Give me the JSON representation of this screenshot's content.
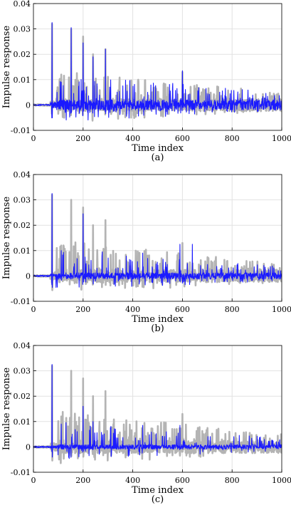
{
  "chart_data": [
    {
      "type": "line",
      "caption": "(a)",
      "xlabel": "Time index",
      "ylabel": "Impulse response",
      "xlim": [
        0,
        1000
      ],
      "ylim": [
        -0.01,
        0.04
      ],
      "xticks": [
        0,
        200,
        400,
        600,
        800,
        1000
      ],
      "yticks": [
        -0.01,
        0,
        0.01,
        0.02,
        0.03,
        0.04
      ],
      "xtick_labels": [
        "0",
        "200",
        "400",
        "600",
        "800",
        "1000"
      ],
      "ytick_labels": [
        "-0.01",
        "0",
        "0.01",
        "0.02",
        "0.03",
        "0.04"
      ],
      "grid": true,
      "series": [
        {
          "color": "#b4b4b4",
          "role": "reference",
          "peaks": [
            [
              75,
              0.032
            ],
            [
              112,
              0.012
            ],
            [
              152,
              0.03
            ],
            [
              200,
              0.027
            ],
            [
              240,
              0.02
            ],
            [
              290,
              0.022
            ],
            [
              600,
              0.013
            ]
          ]
        },
        {
          "color": "#1a1aff",
          "role": "estimate",
          "peaks": [
            [
              75,
              0.0325
            ],
            [
              112,
              0.009
            ],
            [
              152,
              0.0305
            ],
            [
              200,
              0.0245
            ],
            [
              240,
              0.019
            ],
            [
              290,
              0.022
            ],
            [
              600,
              0.0135
            ]
          ]
        }
      ]
    },
    {
      "type": "line",
      "caption": "(b)",
      "xlabel": "Time index",
      "ylabel": "Impulse response",
      "xlim": [
        0,
        1000
      ],
      "ylim": [
        -0.01,
        0.04
      ],
      "xticks": [
        0,
        200,
        400,
        600,
        800,
        1000
      ],
      "yticks": [
        -0.01,
        0,
        0.01,
        0.02,
        0.03,
        0.04
      ],
      "xtick_labels": [
        "0",
        "200",
        "400",
        "600",
        "800",
        "1000"
      ],
      "ytick_labels": [
        "-0.01",
        "0",
        "0.01",
        "0.02",
        "0.03",
        "0.04"
      ],
      "grid": true,
      "series": [
        {
          "color": "#b4b4b4",
          "role": "reference",
          "peaks": [
            [
              75,
              0.032
            ],
            [
              112,
              0.012
            ],
            [
              152,
              0.03
            ],
            [
              200,
              0.027
            ],
            [
              240,
              0.02
            ],
            [
              290,
              0.022
            ],
            [
              600,
              0.013
            ]
          ]
        },
        {
          "color": "#1a1aff",
          "role": "estimate",
          "peaks": [
            [
              75,
              0.0325
            ],
            [
              112,
              0.01
            ],
            [
              200,
              0.0245
            ],
            [
              440,
              0.009
            ],
            [
              590,
              0.0125
            ],
            [
              640,
              0.0125
            ]
          ]
        }
      ]
    },
    {
      "type": "line",
      "caption": "(c)",
      "xlabel": "Time index",
      "ylabel": "Impulse response",
      "xlim": [
        0,
        1000
      ],
      "ylim": [
        -0.01,
        0.04
      ],
      "xticks": [
        0,
        200,
        400,
        600,
        800,
        1000
      ],
      "yticks": [
        -0.01,
        0,
        0.01,
        0.02,
        0.03,
        0.04
      ],
      "xtick_labels": [
        "0",
        "200",
        "400",
        "600",
        "800",
        "1000"
      ],
      "ytick_labels": [
        "-0.01",
        "0",
        "0.01",
        "0.02",
        "0.03",
        "0.04"
      ],
      "grid": true,
      "series": [
        {
          "color": "#b4b4b4",
          "role": "reference",
          "peaks": [
            [
              75,
              0.032
            ],
            [
              112,
              0.012
            ],
            [
              152,
              0.03
            ],
            [
              200,
              0.027
            ],
            [
              240,
              0.02
            ],
            [
              290,
              0.022
            ],
            [
              600,
              0.013
            ]
          ]
        },
        {
          "color": "#1a1aff",
          "role": "estimate",
          "peaks": [
            [
              75,
              0.0325
            ],
            [
              112,
              0.009
            ],
            [
              200,
              0.016
            ],
            [
              240,
              0.01
            ],
            [
              440,
              0.0085
            ],
            [
              590,
              0.0085
            ]
          ]
        }
      ]
    }
  ]
}
